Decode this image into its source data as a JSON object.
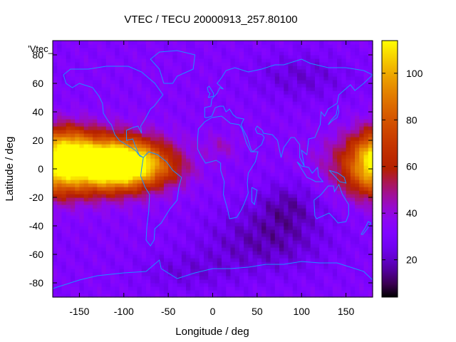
{
  "chart_data": {
    "type": "heatmap",
    "title": "VTEC / TECU 20000913_257.80100",
    "xlabel": "Longitude / deg",
    "ylabel": "Latitude / deg",
    "xlim": [
      -180,
      180
    ],
    "ylim": [
      -90,
      90
    ],
    "xticks": [
      -150,
      -100,
      -50,
      0,
      50,
      100,
      150
    ],
    "yticks": [
      -80,
      -60,
      -40,
      -20,
      0,
      20,
      40,
      60,
      80
    ],
    "legend_label": "'Vtec_",
    "colorbar": {
      "range": [
        4,
        114
      ],
      "ticks": [
        20,
        40,
        60,
        80,
        100
      ],
      "colormap": "gnuplot-pm3d-black-blue-red-yellow"
    },
    "grid_resolution_deg": {
      "lon": 5,
      "lat": 2.5
    },
    "features": [
      {
        "lon": -100,
        "lat": 3,
        "vtec": 112,
        "lon_spread": 34,
        "lat_spread": 11
      },
      {
        "lon": -140,
        "lat": 5,
        "vtec": 90,
        "lon_spread": 50,
        "lat_spread": 14
      },
      {
        "lon": -165,
        "lat": 18,
        "vtec": 60,
        "lon_spread": 20,
        "lat_spread": 10
      },
      {
        "lon": -150,
        "lat": -12,
        "vtec": 38,
        "lon_spread": 35,
        "lat_spread": 8
      },
      {
        "lon": -50,
        "lat": -2,
        "vtec": 38,
        "lon_spread": 14,
        "lat_spread": 6
      },
      {
        "lon": -25,
        "lat": -3,
        "vtec": 34,
        "lon_spread": 10,
        "lat_spread": 5
      },
      {
        "lon": 10,
        "lat": 16,
        "vtec": 42,
        "lon_spread": 14,
        "lat_spread": 6
      },
      {
        "lon": 180,
        "lat": 0,
        "vtec": 68,
        "lon_spread": 22,
        "lat_spread": 14
      },
      {
        "lon": 60,
        "lat": -50,
        "vtec": -14,
        "lon_spread": 50,
        "lat_spread": 16
      },
      {
        "lon": 85,
        "lat": -25,
        "vtec": -12,
        "lon_spread": 25,
        "lat_spread": 12
      },
      {
        "lon": 100,
        "lat": 65,
        "vtec": -10,
        "lon_spread": 40,
        "lat_spread": 12
      },
      {
        "lon": -30,
        "lat": -72,
        "vtec": -8,
        "lon_spread": 40,
        "lat_spread": 10
      }
    ],
    "background_vtec": 32,
    "coastline_color": "#1e90ff",
    "grid": false
  }
}
